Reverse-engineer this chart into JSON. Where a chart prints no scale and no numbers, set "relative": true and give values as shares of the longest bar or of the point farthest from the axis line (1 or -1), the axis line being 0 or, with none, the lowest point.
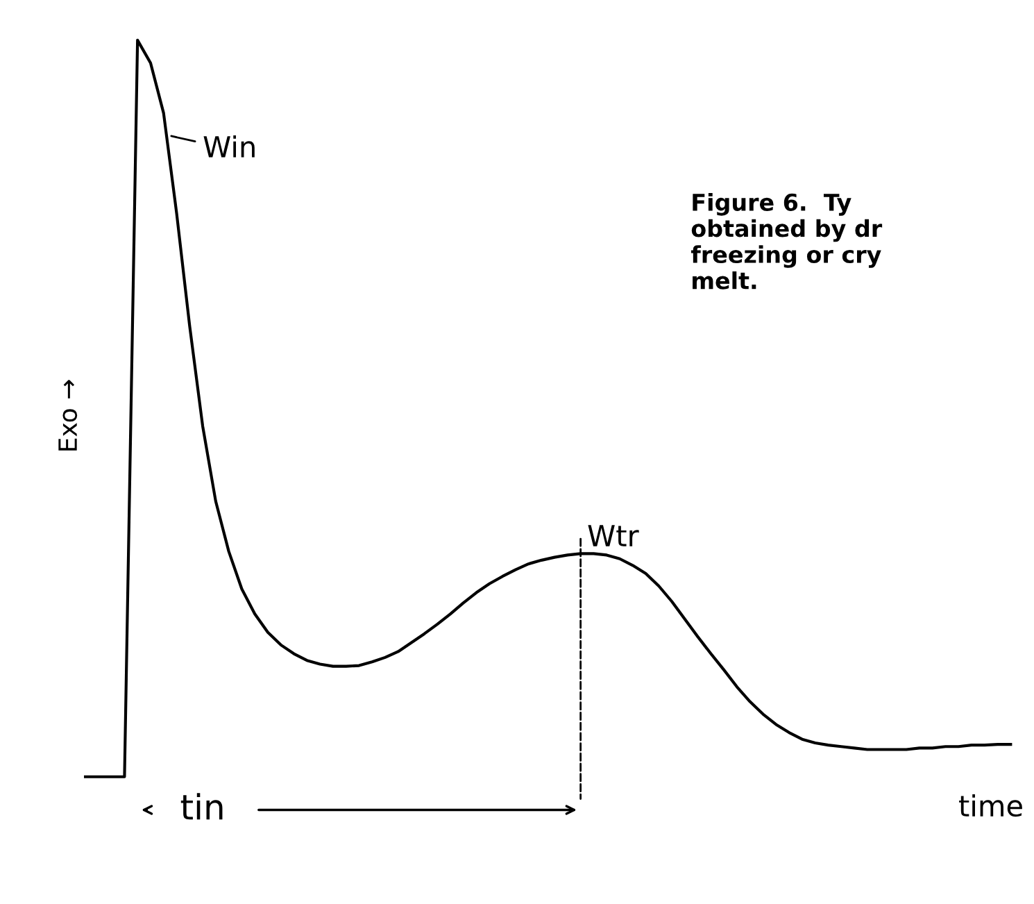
{
  "chart_data": {
    "type": "line",
    "relative": true,
    "xlabel": "time",
    "ylabel": "Exo →",
    "categories": [
      null,
      null,
      null,
      null,
      null,
      null,
      null,
      null,
      null,
      null,
      null,
      null,
      null,
      null,
      null,
      null,
      null,
      null,
      null,
      null,
      null,
      null,
      null,
      null,
      null,
      null,
      null,
      null,
      null,
      null,
      null,
      null,
      null,
      null,
      null,
      null,
      null,
      null,
      null,
      null,
      null,
      null,
      null,
      null,
      null,
      null,
      null,
      null,
      null,
      null,
      null,
      null,
      null,
      null,
      null,
      null,
      null,
      null,
      null,
      null,
      null,
      null,
      null,
      null,
      null,
      null,
      null,
      null,
      null,
      null,
      null,
      null
    ],
    "series": [
      {
        "color": "#000000",
        "values": [
          0,
          0,
          0,
          0,
          1,
          0.969,
          0.901,
          0.765,
          0.612,
          0.476,
          0.374,
          0.306,
          0.255,
          0.221,
          0.196,
          0.179,
          0.167,
          0.158,
          0.153,
          0.15,
          0.15,
          0.151,
          0.156,
          0.162,
          0.17,
          0.182,
          0.194,
          0.207,
          0.221,
          0.236,
          0.25,
          0.262,
          0.272,
          0.281,
          0.289,
          0.294,
          0.298,
          0.301,
          0.303,
          0.303,
          0.301,
          0.296,
          0.287,
          0.276,
          0.259,
          0.238,
          0.214,
          0.19,
          0.167,
          0.145,
          0.122,
          0.102,
          0.085,
          0.071,
          0.06,
          0.051,
          0.046,
          0.043,
          0.041,
          0.039,
          0.037,
          0.037,
          0.037,
          0.037,
          0.039,
          0.039,
          0.041,
          0.041,
          0.043,
          0.043,
          0.044,
          0.044
        ]
      }
    ],
    "annotations": [
      "Win",
      "Wtr",
      "tin",
      "Figure 6.  Ty\nobtained by dr\nfreezing or cry\nmelt."
    ],
    "tick_labels": false,
    "grid": false
  }
}
